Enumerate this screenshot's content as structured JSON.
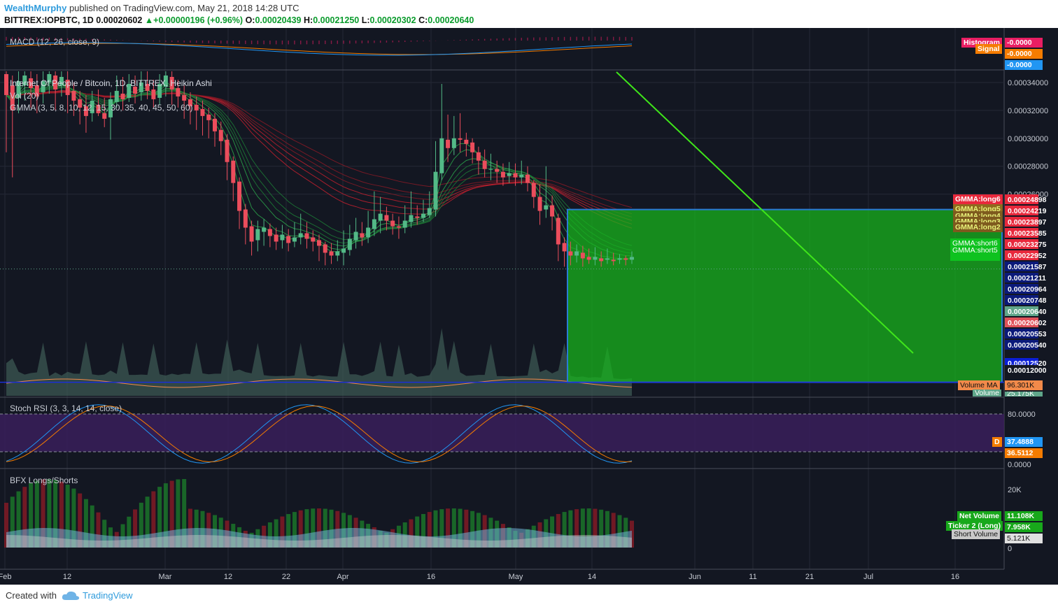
{
  "header": {
    "author": "WealthMurphy",
    "published_text": "published on TradingView.com, May 21, 2018 14:28 UTC",
    "symbol": "BITTREX:IOPBTC, 1D",
    "last": "0.00020602",
    "change": "▲+0.00000196 (+0.96%)",
    "o_label": "O:",
    "o_value": "0.00020439",
    "h_label": "H:",
    "h_value": "0.00021250",
    "l_label": "L:",
    "l_value": "0.00020302",
    "c_label": "C:",
    "c_value": "0.00020640"
  },
  "panes": {
    "macd": {
      "label": "MACD (12, 26, close, 9)",
      "badges": [
        "Histogram",
        "Signal"
      ],
      "values": [
        "-0.0000",
        "-0.0000",
        "-0.0000"
      ]
    },
    "main": {
      "title": "Internet Of People / Bitcoin, 1D, BITTREX, Heikin Ashi",
      "vol": "Vol (20)",
      "gmma": "GMMA (3, 5, 8, 10, 12, 15, 30, 35, 40, 45, 50, 60)"
    },
    "stoch": {
      "label": "Stoch RSI (3, 3, 14, 14, close)",
      "d_badge": "D",
      "axis": [
        "80.0000",
        "0.0000"
      ],
      "values": [
        "37.4888",
        "36.5112"
      ]
    },
    "bfx": {
      "label": "BFX Longs/Shorts",
      "axis": [
        "20K",
        "0"
      ],
      "net_label": "Net Volume",
      "net_value": "11.108K",
      "long_label": "Ticker 2 (Long)",
      "long_value": "7.958K",
      "short_label": "Short Volume",
      "short_value": "5.121K"
    }
  },
  "price_axis": {
    "labels": [
      "0.00034000",
      "0.00032000",
      "0.00030000",
      "0.00028000",
      "0.00026000"
    ],
    "badges": [
      {
        "v": "0.00024898",
        "c": "#e8283c"
      },
      {
        "v": "0.00024219",
        "c": "#e8283c"
      },
      {
        "v": "0.00023897",
        "c": "#e8283c"
      },
      {
        "v": "0.00023585",
        "c": "#e8283c"
      },
      {
        "v": "0.00023275",
        "c": "#e8283c"
      },
      {
        "v": "0.00022952",
        "c": "#e8283c"
      },
      {
        "v": "0.00021587",
        "c": "#0b1a7a"
      },
      {
        "v": "0.00021211",
        "c": "#0b1a7a"
      },
      {
        "v": "0.00020964",
        "c": "#0b1a7a"
      },
      {
        "v": "0.00020748",
        "c": "#0b1a7a"
      },
      {
        "v": "0.00020640",
        "c": "#5fa68a"
      },
      {
        "v": "0.00020602",
        "c": "#e0525a"
      },
      {
        "v": "0.00020553",
        "c": "#0b1a7a"
      },
      {
        "v": "0.00020540",
        "c": "#0b1a7a"
      },
      {
        "v": "0.00012520",
        "c": "#0b1fd6"
      },
      {
        "v": "0.00012000",
        "c": "#131722"
      }
    ],
    "gmma_tags": [
      "GMMA:long6",
      "GMMA:long5",
      "GMMA:long4",
      "GMMA:long3",
      "GMMA:long2",
      "GMMA:short6",
      "GMMA:short5"
    ],
    "volume_ma_label": "Volume MA",
    "volume_ma_value": "96.301K",
    "volume_label": "Volume",
    "volume_value": "25.175K"
  },
  "x_axis": [
    "Feb",
    "12",
    "Mar",
    "12",
    "22",
    "Apr",
    "16",
    "May",
    "14",
    "Jun",
    "11",
    "21",
    "Jul",
    "16"
  ],
  "colors": {
    "up": "#53b987",
    "down": "#eb4d5c",
    "box": "#17b81c",
    "trend": "#3fe61a",
    "bg": "#131722"
  },
  "chart_data": {
    "type": "candlestick",
    "title": "Internet Of People / Bitcoin, 1D, BITTREX, Heikin Ashi",
    "y_range": [
      0.000115,
      0.000348
    ],
    "ohlc": [
      {
        "o": 0.000346,
        "c": 0.000331,
        "h": 0.000348,
        "l": 0.00029
      },
      {
        "o": 0.000338,
        "c": 0.00032,
        "h": 0.000345,
        "l": 0.000272
      },
      {
        "o": 0.000329,
        "c": 0.000341,
        "h": 0.000348,
        "l": 0.000318
      },
      {
        "o": 0.000338,
        "c": 0.000345,
        "h": 0.000348,
        "l": 0.000327
      },
      {
        "o": 0.000343,
        "c": 0.000336,
        "h": 0.000348,
        "l": 0.000322
      },
      {
        "o": 0.000338,
        "c": 0.00033,
        "h": 0.000346,
        "l": 0.000318
      },
      {
        "o": 0.000333,
        "c": 0.000341,
        "h": 0.000348,
        "l": 0.000325
      },
      {
        "o": 0.00034,
        "c": 0.000346,
        "h": 0.000348,
        "l": 0.000332
      },
      {
        "o": 0.000345,
        "c": 0.000335,
        "h": 0.000348,
        "l": 0.00032
      },
      {
        "o": 0.000338,
        "c": 0.000344,
        "h": 0.000348,
        "l": 0.00033
      },
      {
        "o": 0.000342,
        "c": 0.000331,
        "h": 0.000348,
        "l": 0.000318
      },
      {
        "o": 0.000334,
        "c": 0.000327,
        "h": 0.00034,
        "l": 0.000316
      },
      {
        "o": 0.000328,
        "c": 0.000322,
        "h": 0.000334,
        "l": 0.00031
      },
      {
        "o": 0.000323,
        "c": 0.000316,
        "h": 0.000331,
        "l": 0.000304
      },
      {
        "o": 0.000318,
        "c": 0.000327,
        "h": 0.000334,
        "l": 0.000312
      },
      {
        "o": 0.000324,
        "c": 0.000318,
        "h": 0.000335,
        "l": 0.000316
      },
      {
        "o": 0.000318,
        "c": 0.000314,
        "h": 0.000329,
        "l": 0.000308
      },
      {
        "o": 0.000315,
        "c": 0.000328,
        "h": 0.000333,
        "l": 0.000299
      },
      {
        "o": 0.000326,
        "c": 0.000334,
        "h": 0.000345,
        "l": 0.000322
      },
      {
        "o": 0.000332,
        "c": 0.000328,
        "h": 0.000344,
        "l": 0.00032
      },
      {
        "o": 0.000329,
        "c": 0.000339,
        "h": 0.000346,
        "l": 0.000326
      },
      {
        "o": 0.000337,
        "c": 0.000332,
        "h": 0.000345,
        "l": 0.000325
      },
      {
        "o": 0.000333,
        "c": 0.00034,
        "h": 0.000348,
        "l": 0.000327
      },
      {
        "o": 0.000339,
        "c": 0.000334,
        "h": 0.000348,
        "l": 0.000328
      },
      {
        "o": 0.000335,
        "c": 0.000328,
        "h": 0.000342,
        "l": 0.000322
      },
      {
        "o": 0.000329,
        "c": 0.000339,
        "h": 0.000346,
        "l": 0.000324
      },
      {
        "o": 0.000337,
        "c": 0.000345,
        "h": 0.000348,
        "l": 0.00033
      },
      {
        "o": 0.000344,
        "c": 0.000335,
        "h": 0.000348,
        "l": 0.000324
      },
      {
        "o": 0.000336,
        "c": 0.00033,
        "h": 0.000342,
        "l": 0.000322
      },
      {
        "o": 0.000331,
        "c": 0.000327,
        "h": 0.000338,
        "l": 0.000314
      },
      {
        "o": 0.000328,
        "c": 0.000323,
        "h": 0.000333,
        "l": 0.00031
      },
      {
        "o": 0.000324,
        "c": 0.00032,
        "h": 0.00033,
        "l": 0.000306
      },
      {
        "o": 0.000321,
        "c": 0.000316,
        "h": 0.000327,
        "l": 0.000302
      },
      {
        "o": 0.000317,
        "c": 0.000313,
        "h": 0.000322,
        "l": 0.0003
      },
      {
        "o": 0.000314,
        "c": 0.000305,
        "h": 0.000318,
        "l": 0.000294
      },
      {
        "o": 0.000306,
        "c": 0.000298,
        "h": 0.000312,
        "l": 0.000288
      },
      {
        "o": 0.000299,
        "c": 0.000283,
        "h": 0.000303,
        "l": 0.00027
      },
      {
        "o": 0.000284,
        "c": 0.000268,
        "h": 0.000287,
        "l": 0.000255
      },
      {
        "o": 0.000269,
        "c": 0.000248,
        "h": 0.000272,
        "l": 0.000235
      },
      {
        "o": 0.000249,
        "c": 0.000236,
        "h": 0.000253,
        "l": 0.000224
      },
      {
        "o": 0.000237,
        "c": 0.000226,
        "h": 0.000241,
        "l": 0.000216
      },
      {
        "o": 0.000227,
        "c": 0.000235,
        "h": 0.000241,
        "l": 0.000219
      },
      {
        "o": 0.000233,
        "c": 0.000236,
        "h": 0.000242,
        "l": 0.000223
      },
      {
        "o": 0.000235,
        "c": 0.00023,
        "h": 0.000239,
        "l": 0.000222
      },
      {
        "o": 0.000231,
        "c": 0.000226,
        "h": 0.000236,
        "l": 0.00022
      },
      {
        "o": 0.000227,
        "c": 0.000231,
        "h": 0.000238,
        "l": 0.000221
      },
      {
        "o": 0.00023,
        "c": 0.000225,
        "h": 0.000235,
        "l": 0.000219
      },
      {
        "o": 0.000226,
        "c": 0.000229,
        "h": 0.00024,
        "l": 0.000222
      },
      {
        "o": 0.000229,
        "c": 0.000232,
        "h": 0.000246,
        "l": 0.000224
      },
      {
        "o": 0.000232,
        "c": 0.000228,
        "h": 0.00024,
        "l": 0.000221
      },
      {
        "o": 0.000229,
        "c": 0.000226,
        "h": 0.000234,
        "l": 0.000219
      },
      {
        "o": 0.000227,
        "c": 0.000223,
        "h": 0.000231,
        "l": 0.000212
      },
      {
        "o": 0.000224,
        "c": 0.000218,
        "h": 0.000226,
        "l": 0.000209
      },
      {
        "o": 0.000219,
        "c": 0.000216,
        "h": 0.000225,
        "l": 0.00021
      },
      {
        "o": 0.000216,
        "c": 0.000219,
        "h": 0.000227,
        "l": 0.000212
      },
      {
        "o": 0.000218,
        "c": 0.000221,
        "h": 0.000234,
        "l": 0.000209
      },
      {
        "o": 0.00022,
        "c": 0.000228,
        "h": 0.000238,
        "l": 0.000216
      },
      {
        "o": 0.000227,
        "c": 0.000233,
        "h": 0.000243,
        "l": 0.000221
      },
      {
        "o": 0.000232,
        "c": 0.000229,
        "h": 0.00024,
        "l": 0.000223
      },
      {
        "o": 0.000229,
        "c": 0.000236,
        "h": 0.000248,
        "l": 0.000225
      },
      {
        "o": 0.000235,
        "c": 0.000242,
        "h": 0.000262,
        "l": 0.00023
      },
      {
        "o": 0.000241,
        "c": 0.000246,
        "h": 0.000258,
        "l": 0.000232
      },
      {
        "o": 0.000245,
        "c": 0.000241,
        "h": 0.000251,
        "l": 0.000234
      },
      {
        "o": 0.000241,
        "c": 0.000237,
        "h": 0.000246,
        "l": 0.000231
      },
      {
        "o": 0.000237,
        "c": 0.000236,
        "h": 0.000244,
        "l": 0.000228
      },
      {
        "o": 0.000236,
        "c": 0.000241,
        "h": 0.000252,
        "l": 0.000232
      },
      {
        "o": 0.00024,
        "c": 0.000245,
        "h": 0.000262,
        "l": 0.000236
      },
      {
        "o": 0.000244,
        "c": 0.000243,
        "h": 0.000252,
        "l": 0.000238
      },
      {
        "o": 0.000243,
        "c": 0.000246,
        "h": 0.000256,
        "l": 0.00024
      },
      {
        "o": 0.000245,
        "c": 0.00025,
        "h": 0.000262,
        "l": 0.000243
      },
      {
        "o": 0.000249,
        "c": 0.000276,
        "h": 0.000298,
        "l": 0.000244
      },
      {
        "o": 0.000275,
        "c": 0.0003,
        "h": 0.000339,
        "l": 0.00027
      },
      {
        "o": 0.000299,
        "c": 0.000293,
        "h": 0.000317,
        "l": 0.000283
      },
      {
        "o": 0.000293,
        "c": 0.0003,
        "h": 0.000316,
        "l": 0.000288
      },
      {
        "o": 0.0003,
        "c": 0.000299,
        "h": 0.000318,
        "l": 0.00029
      },
      {
        "o": 0.000299,
        "c": 0.000296,
        "h": 0.000304,
        "l": 0.000287
      },
      {
        "o": 0.000297,
        "c": 0.00029,
        "h": 0.0003,
        "l": 0.000282
      },
      {
        "o": 0.00029,
        "c": 0.000284,
        "h": 0.000294,
        "l": 0.000274
      },
      {
        "o": 0.000284,
        "c": 0.000278,
        "h": 0.000292,
        "l": 0.000272
      },
      {
        "o": 0.000278,
        "c": 0.000278,
        "h": 0.000289,
        "l": 0.00027
      },
      {
        "o": 0.000278,
        "c": 0.000276,
        "h": 0.000284,
        "l": 0.000268
      },
      {
        "o": 0.000276,
        "c": 0.000272,
        "h": 0.000282,
        "l": 0.000266
      },
      {
        "o": 0.000273,
        "c": 0.000275,
        "h": 0.000283,
        "l": 0.000268
      },
      {
        "o": 0.000275,
        "c": 0.000272,
        "h": 0.000282,
        "l": 0.000266
      },
      {
        "o": 0.000272,
        "c": 0.000274,
        "h": 0.000284,
        "l": 0.000267
      },
      {
        "o": 0.000274,
        "c": 0.000268,
        "h": 0.00028,
        "l": 0.000262
      },
      {
        "o": 0.000268,
        "c": 0.000258,
        "h": 0.00027,
        "l": 0.00025
      },
      {
        "o": 0.000258,
        "c": 0.000248,
        "h": 0.000267,
        "l": 0.000238
      },
      {
        "o": 0.000249,
        "c": 0.000252,
        "h": 0.00028,
        "l": 0.000243
      },
      {
        "o": 0.000252,
        "c": 0.000244,
        "h": 0.000259,
        "l": 0.000234
      },
      {
        "o": 0.000243,
        "c": 0.000224,
        "h": 0.000246,
        "l": 0.000212
      },
      {
        "o": 0.000225,
        "c": 0.000219,
        "h": 0.000229,
        "l": 0.000208
      },
      {
        "o": 0.000219,
        "c": 0.000216,
        "h": 0.000226,
        "l": 0.000209
      },
      {
        "o": 0.000216,
        "c": 0.000219,
        "h": 0.000224,
        "l": 0.000211
      },
      {
        "o": 0.000218,
        "c": 0.000214,
        "h": 0.000223,
        "l": 0.000208
      },
      {
        "o": 0.000215,
        "c": 0.000213,
        "h": 0.000221,
        "l": 0.00021
      },
      {
        "o": 0.000213,
        "c": 0.000215,
        "h": 0.000222,
        "l": 0.000209
      },
      {
        "o": 0.000214,
        "c": 0.000212,
        "h": 0.000219,
        "l": 0.000208
      },
      {
        "o": 0.000213,
        "c": 0.000214,
        "h": 0.000221,
        "l": 0.00021
      },
      {
        "o": 0.000213,
        "c": 0.000212,
        "h": 0.000218,
        "l": 0.000209
      },
      {
        "o": 0.000213,
        "c": 0.000214,
        "h": 0.000217,
        "l": 0.00021
      },
      {
        "o": 0.000214,
        "c": 0.000213,
        "h": 0.000216,
        "l": 0.000209
      },
      {
        "o": 0.000213,
        "c": 0.000215,
        "h": 0.000219,
        "l": 0.00021
      }
    ],
    "green_box": {
      "top": 0.00024898,
      "bottom": 0.0001252
    },
    "current_price": 0.0002064
  }
}
